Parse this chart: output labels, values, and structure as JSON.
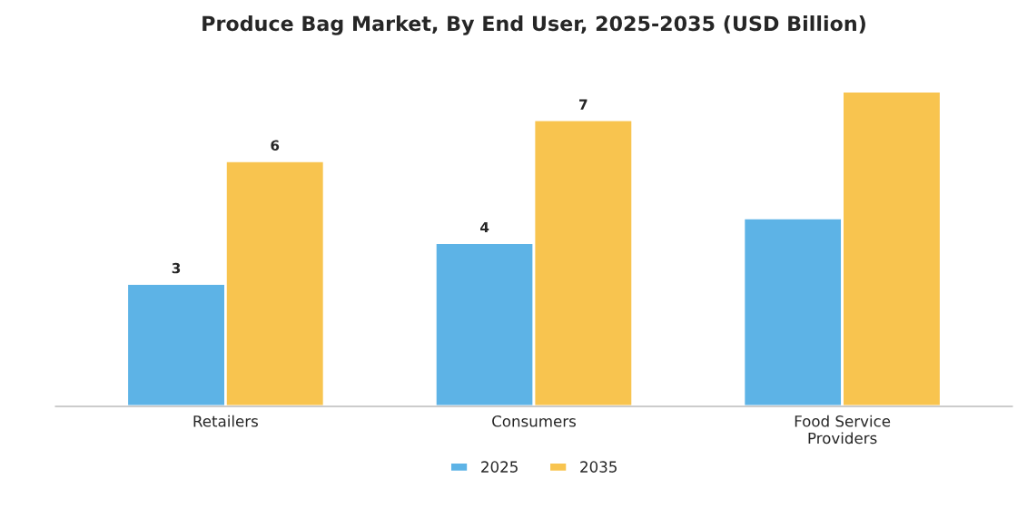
{
  "chart_data": {
    "type": "bar",
    "title": "Produce Bag Market, By End User, 2025-2035 (USD Billion)",
    "categories": [
      "Retailers",
      "Consumers",
      "Food Service\nProviders"
    ],
    "series": [
      {
        "name": "2025",
        "color": "#5db3e6",
        "values": [
          3,
          4,
          4.6
        ],
        "value_labels": [
          "3",
          "4",
          null
        ]
      },
      {
        "name": "2035",
        "color": "#f8c44f",
        "values": [
          6,
          7,
          7.7
        ],
        "value_labels": [
          "6",
          "7",
          null
        ]
      }
    ],
    "legend": "bottom",
    "grid": false
  }
}
